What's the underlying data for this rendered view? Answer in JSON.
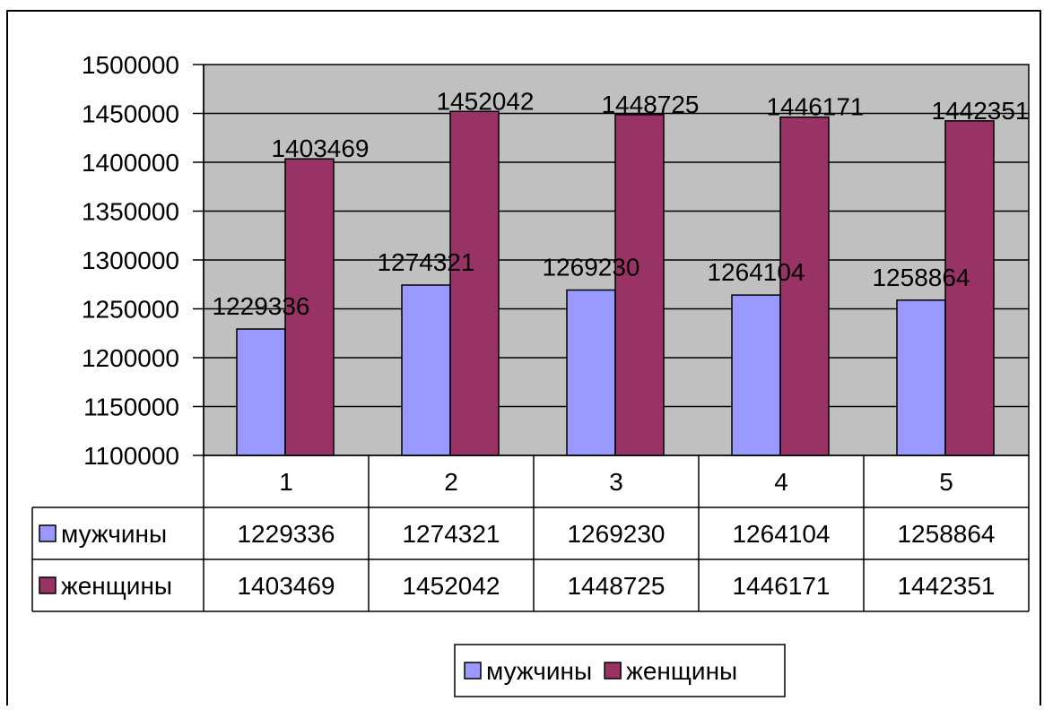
{
  "chart_data": {
    "type": "bar",
    "categories": [
      "1",
      "2",
      "3",
      "4",
      "5"
    ],
    "series": [
      {
        "name": "мужчины",
        "values": [
          1229336,
          1274321,
          1269230,
          1264104,
          1258864
        ],
        "color": "#9999FF"
      },
      {
        "name": "женщины",
        "values": [
          1403469,
          1452042,
          1448725,
          1446171,
          1442351
        ],
        "color": "#993366"
      }
    ],
    "yticks": [
      "1100000",
      "1150000",
      "1200000",
      "1250000",
      "1300000",
      "1350000",
      "1400000",
      "1450000",
      "1500000"
    ],
    "ylim": [
      1100000,
      1500000
    ],
    "ytick_step": 50000,
    "grid": true,
    "plot_background": "#C0C0C0",
    "data_table": true,
    "legend_position": "bottom"
  }
}
